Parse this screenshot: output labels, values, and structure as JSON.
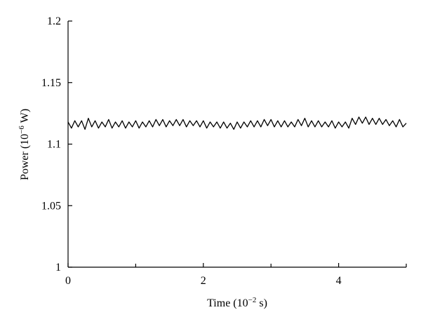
{
  "chart_data": {
    "type": "line",
    "xlabel": {
      "main": "Time (10",
      "exp": "−2",
      "unit": " s)"
    },
    "ylabel": {
      "main": "Power (10",
      "exp": "−6",
      "unit": " W)"
    },
    "xlim": [
      0,
      5
    ],
    "ylim": [
      1.0,
      1.2
    ],
    "x_ticks": [
      0,
      2,
      4
    ],
    "x_tick_labels": [
      "0",
      "2",
      "4"
    ],
    "x_minor_ticks": [
      1,
      3,
      5
    ],
    "y_ticks": [
      1.0,
      1.05,
      1.1,
      1.15,
      1.2
    ],
    "y_tick_labels": [
      "1",
      "1.05",
      "1.1",
      "1.15",
      "1.2"
    ],
    "grid": false,
    "series": [
      {
        "x": [
          0.0,
          0.05,
          0.1,
          0.15,
          0.2,
          0.25,
          0.3,
          0.35,
          0.4,
          0.45,
          0.5,
          0.55,
          0.6,
          0.65,
          0.7,
          0.75,
          0.8,
          0.85,
          0.9,
          0.95,
          1.0,
          1.05,
          1.1,
          1.15,
          1.2,
          1.25,
          1.3,
          1.35,
          1.4,
          1.45,
          1.5,
          1.55,
          1.6,
          1.65,
          1.7,
          1.75,
          1.8,
          1.85,
          1.9,
          1.95,
          2.0,
          2.05,
          2.1,
          2.15,
          2.2,
          2.25,
          2.3,
          2.35,
          2.4,
          2.45,
          2.5,
          2.55,
          2.6,
          2.65,
          2.7,
          2.75,
          2.8,
          2.85,
          2.9,
          2.95,
          3.0,
          3.05,
          3.1,
          3.15,
          3.2,
          3.25,
          3.3,
          3.35,
          3.4,
          3.45,
          3.5,
          3.55,
          3.6,
          3.65,
          3.7,
          3.75,
          3.8,
          3.85,
          3.9,
          3.95,
          4.0,
          4.05,
          4.1,
          4.15,
          4.2,
          4.25,
          4.3,
          4.35,
          4.4,
          4.45,
          4.5,
          4.55,
          4.6,
          4.65,
          4.7,
          4.75,
          4.8,
          4.85,
          4.9,
          4.95,
          5.0
        ],
        "y": [
          1.118,
          1.113,
          1.119,
          1.114,
          1.119,
          1.112,
          1.121,
          1.114,
          1.119,
          1.113,
          1.118,
          1.114,
          1.12,
          1.113,
          1.118,
          1.114,
          1.119,
          1.113,
          1.118,
          1.114,
          1.119,
          1.113,
          1.118,
          1.114,
          1.119,
          1.114,
          1.12,
          1.115,
          1.12,
          1.114,
          1.119,
          1.115,
          1.12,
          1.115,
          1.12,
          1.114,
          1.119,
          1.115,
          1.119,
          1.114,
          1.119,
          1.113,
          1.118,
          1.114,
          1.118,
          1.113,
          1.118,
          1.113,
          1.117,
          1.112,
          1.118,
          1.113,
          1.118,
          1.114,
          1.119,
          1.114,
          1.119,
          1.114,
          1.12,
          1.115,
          1.12,
          1.114,
          1.119,
          1.114,
          1.119,
          1.114,
          1.118,
          1.114,
          1.12,
          1.115,
          1.121,
          1.114,
          1.119,
          1.114,
          1.119,
          1.114,
          1.118,
          1.114,
          1.119,
          1.113,
          1.118,
          1.114,
          1.118,
          1.113,
          1.121,
          1.116,
          1.122,
          1.117,
          1.122,
          1.116,
          1.121,
          1.116,
          1.121,
          1.116,
          1.12,
          1.115,
          1.119,
          1.114,
          1.12,
          1.114,
          1.117
        ]
      }
    ]
  }
}
